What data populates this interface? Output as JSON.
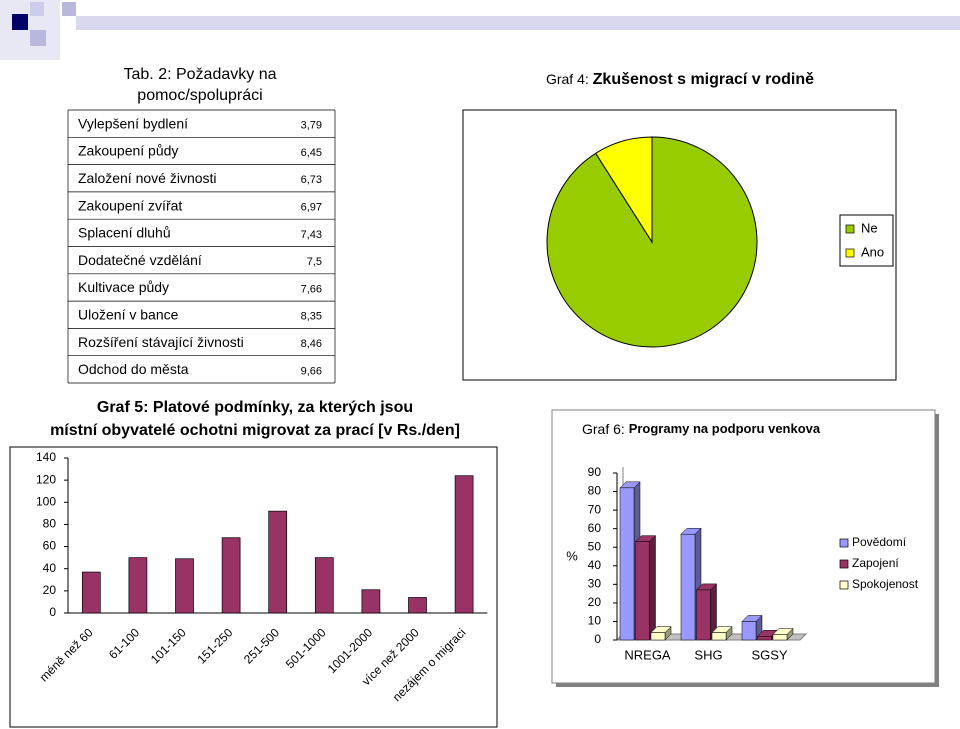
{
  "table": {
    "title": "Tab. 2: Požadavky na pomoc/spolupráci",
    "rows": [
      [
        "Vylepšení bydlení",
        "3,79"
      ],
      [
        "Zakoupení půdy",
        "6,45"
      ],
      [
        "Založení nové živnosti",
        "6,73"
      ],
      [
        "Zakoupení zvířat",
        "6,97"
      ],
      [
        "Splacení dluhů",
        "7,43"
      ],
      [
        "Dodatečné vzdělání",
        "7,5"
      ],
      [
        "Kultivace půdy",
        "7,66"
      ],
      [
        "Uložení v bance",
        "8,35"
      ],
      [
        "Rozšíření stávající živnosti",
        "8,46"
      ],
      [
        "Odchod do města",
        "9,66"
      ]
    ]
  },
  "chart_data": [
    {
      "type": "pie",
      "title_number": "Graf 4:",
      "title": "Zkušenost s migrací v rodině",
      "categories": [
        "Ne",
        "Ano"
      ],
      "values": [
        91,
        9
      ],
      "colors": [
        "#99cc00",
        "#ffff00"
      ],
      "legend": "right"
    },
    {
      "type": "bar",
      "title": "Graf 5: Platové podmínky, za kterých jsou místní obyvatelé ochotni migrovat za prací [v Rs./den]",
      "categories": [
        "méně než 60",
        "61-100",
        "101-150",
        "151-250",
        "251-500",
        "501-1000",
        "1001-2000",
        "více než 2000",
        "nezájem o migraci"
      ],
      "values": [
        37,
        50,
        49,
        68,
        92,
        50,
        21,
        14,
        124
      ],
      "color": "#993366",
      "ylim": [
        0,
        140
      ],
      "yticks": [
        0,
        20,
        40,
        60,
        80,
        100,
        120,
        140
      ],
      "grid": false
    },
    {
      "type": "bar3d",
      "title_number": "Graf 6:",
      "title": "Programy na podporu venkova",
      "y_label": "%",
      "categories": [
        "NREGA",
        "SHG",
        "SGSY"
      ],
      "series": [
        {
          "name": "Povědomí",
          "color": "#9999ff",
          "values": [
            82,
            57,
            10
          ]
        },
        {
          "name": "Zapojení",
          "color": "#993366",
          "values": [
            53,
            27,
            2
          ]
        },
        {
          "name": "Spokojenost",
          "color": "#ffffcc",
          "values": [
            4,
            4,
            3
          ]
        }
      ],
      "ylim": [
        0,
        90
      ],
      "yticks": [
        0,
        10,
        20,
        30,
        40,
        50,
        60,
        70,
        80,
        90
      ],
      "legend": "right"
    }
  ]
}
